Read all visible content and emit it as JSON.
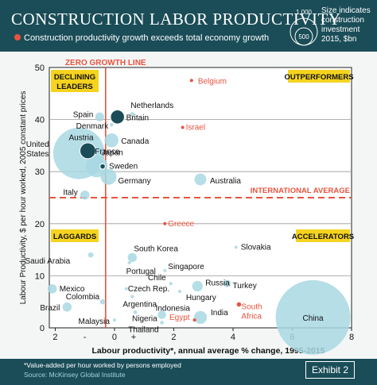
{
  "header": {
    "title": "CONSTRUCTION LABOR PRODUCTIVITY",
    "subtitle": "Construction productivity growth exceeds total economy growth",
    "legend_sizes": [
      "1,000",
      "500"
    ],
    "legend_text": [
      "Size indicates",
      "construction",
      "investment",
      "2015, $bn"
    ]
  },
  "colors": {
    "header_bg": "#1a4d58",
    "bubble": "#a8d8e3",
    "bubble_dark": "#1a4d58",
    "highlight": "#e8533f",
    "quadrant_label_bg": "#f5d31e"
  },
  "footer": {
    "footnote": "*Value-added per hour worked by persons employed",
    "source": "Source: McKinsey Global Institute",
    "exhibit": "Exhibit 2"
  },
  "chart_data": {
    "type": "scatter",
    "xlabel": "Labour productivity*, annual average % change, 1995-2015",
    "ylabel": "Labour Productivity, $ per hour worked, 2005 constant prices",
    "xlim": [
      -2.2,
      8
    ],
    "ylim": [
      0,
      50
    ],
    "x_ticks": [
      -2,
      0,
      2,
      4,
      6,
      8
    ],
    "x_tick_labels": [
      "2",
      "0",
      "2",
      "4",
      "6",
      "8"
    ],
    "sign_labels": [
      "-",
      "+"
    ],
    "y_ticks": [
      0,
      10,
      20,
      30,
      40,
      50
    ],
    "grid": true,
    "zero_growth_label": "ZERO GROWTH LINE",
    "zero_growth_x": -0.3,
    "international_average_label": "INTERNATIONAL AVERAGE",
    "international_average_y": 25,
    "quadrant_labels": [
      "DECLINING LEADERS",
      "OUTPERFORMERS",
      "LAGGARDS",
      "ACCELERATORS"
    ],
    "points": [
      {
        "name": "Belgium",
        "x": 2.6,
        "y": 47.5,
        "size": 3,
        "highlight": true
      },
      {
        "name": "Netherlands",
        "x": 0.6,
        "y": 41,
        "size": 8
      },
      {
        "name": "Spain",
        "x": -0.5,
        "y": 40.5,
        "size": 28
      },
      {
        "name": "Britain",
        "x": 0.1,
        "y": 40.5,
        "size": 70,
        "dark": true
      },
      {
        "name": "Denmark",
        "x": -0.1,
        "y": 39,
        "size": 5
      },
      {
        "name": "Israel",
        "x": 2.3,
        "y": 38.5,
        "size": 3,
        "highlight": true
      },
      {
        "name": "Austria",
        "x": -0.6,
        "y": 36.5,
        "size": 5
      },
      {
        "name": "Canada",
        "x": -0.1,
        "y": 36,
        "size": 70
      },
      {
        "name": "United States",
        "x": -1.2,
        "y": 33.5,
        "size": 950
      },
      {
        "name": "France",
        "x": -0.9,
        "y": 34,
        "size": 90,
        "dark": true
      },
      {
        "name": "Japan",
        "x": -0.6,
        "y": 31,
        "size": 170
      },
      {
        "name": "Sweden",
        "x": -0.4,
        "y": 31,
        "size": 10,
        "dark": true
      },
      {
        "name": "Germany",
        "x": -0.2,
        "y": 29,
        "size": 90
      },
      {
        "name": "Australia",
        "x": 2.9,
        "y": 28.5,
        "size": 50
      },
      {
        "name": "Italy",
        "x": -1,
        "y": 25.5,
        "size": 30
      },
      {
        "name": "Greece",
        "x": 1.7,
        "y": 20,
        "size": 2,
        "highlight": true
      },
      {
        "name": "Slovakia",
        "x": 4.1,
        "y": 15.5,
        "size": 3
      },
      {
        "name": "Saudi Arabia",
        "x": -0.8,
        "y": 14,
        "size": 10
      },
      {
        "name": "South Korea",
        "x": 0.6,
        "y": 13.5,
        "size": 30
      },
      {
        "name": "Portugal",
        "x": 0.5,
        "y": 12.5,
        "size": 3
      },
      {
        "name": "Singapore",
        "x": 1.7,
        "y": 11,
        "size": 3
      },
      {
        "name": "Chile",
        "x": 1.9,
        "y": 8.5,
        "size": 4
      },
      {
        "name": "Russia",
        "x": 2.8,
        "y": 8,
        "size": 40
      },
      {
        "name": "Turkey",
        "x": 3.8,
        "y": 8.5,
        "size": 20
      },
      {
        "name": "Czech Rep.",
        "x": 0.4,
        "y": 7.5,
        "size": 3
      },
      {
        "name": "Hungary",
        "x": 2.2,
        "y": 7,
        "size": 2
      },
      {
        "name": "Mexico",
        "x": -2.1,
        "y": 7.5,
        "size": 30
      },
      {
        "name": "Argentina",
        "x": 0.6,
        "y": 6,
        "size": 4
      },
      {
        "name": "Colombia",
        "x": -0.4,
        "y": 5,
        "size": 10
      },
      {
        "name": "South Africa",
        "x": 4.2,
        "y": 4.5,
        "size": 7,
        "highlight": true
      },
      {
        "name": "Brazil",
        "x": -1.6,
        "y": 4,
        "size": 30
      },
      {
        "name": "Indonesia",
        "x": 1.6,
        "y": 2.5,
        "size": 25
      },
      {
        "name": "Nigeria",
        "x": 0.7,
        "y": 3,
        "size": 5
      },
      {
        "name": "India",
        "x": 2.9,
        "y": 2,
        "size": 60
      },
      {
        "name": "Egypt",
        "x": 2.7,
        "y": 1.5,
        "size": 3,
        "highlight": true
      },
      {
        "name": "China",
        "x": 6.7,
        "y": 2,
        "size": 2000
      },
      {
        "name": "Malaysia",
        "x": 0,
        "y": 1.5,
        "size": 3
      },
      {
        "name": "Thailand",
        "x": 1.6,
        "y": 1,
        "size": 5
      }
    ]
  }
}
